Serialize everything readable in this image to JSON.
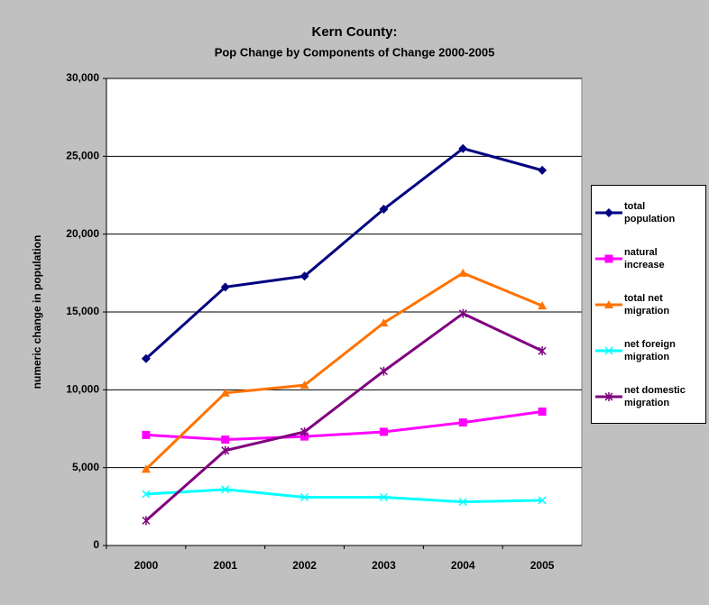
{
  "chart_data": {
    "type": "line",
    "title": "Kern County:",
    "subtitle": "Pop Change by Components of Change 2000-2005",
    "y_label": "numeric change in population",
    "categories": [
      "2000",
      "2001",
      "2002",
      "2003",
      "2004",
      "2005"
    ],
    "series": [
      {
        "name": "total population",
        "color": "#000080",
        "marker": "diamond",
        "values": [
          12000,
          16600,
          17300,
          21600,
          25500,
          24100
        ]
      },
      {
        "name": "natural increase",
        "color": "#ff00ff",
        "marker": "square",
        "values": [
          7100,
          6800,
          7000,
          7300,
          7900,
          8600
        ]
      },
      {
        "name": "total net migration",
        "color": "#ff7300",
        "marker": "triangle",
        "values": [
          4900,
          9800,
          10300,
          14300,
          17500,
          15400
        ]
      },
      {
        "name": "net foreign migration",
        "color": "#00ffff",
        "marker": "x",
        "values": [
          3300,
          3600,
          3100,
          3100,
          2800,
          2900
        ]
      },
      {
        "name": "net domestic migration",
        "color": "#800080",
        "marker": "asterisk",
        "values": [
          1600,
          6100,
          7300,
          11200,
          14900,
          12500
        ]
      }
    ],
    "ylim": [
      0,
      30000
    ],
    "yticks": [
      0,
      {
        "value": 5000,
        "label": "5,000"
      },
      {
        "value": 10000,
        "label": "10,000"
      },
      {
        "value": 15000,
        "label": "15,000"
      },
      {
        "value": 20000,
        "label": "20,000"
      },
      {
        "value": 25000,
        "label": "25,000"
      },
      {
        "value": 30000,
        "label": "30,000"
      }
    ],
    "grid": true,
    "legend": "right"
  }
}
